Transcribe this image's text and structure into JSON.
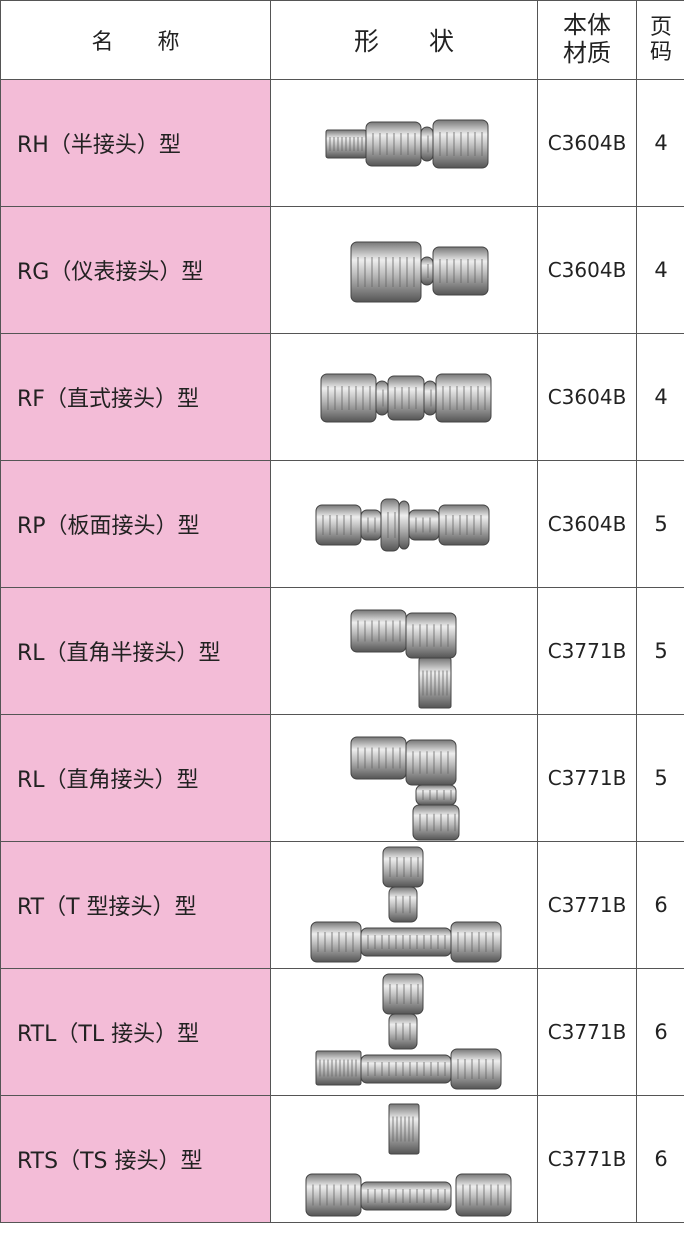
{
  "header": [
    "名　　称",
    "形　　状",
    "本体材质",
    "页码"
  ],
  "rows": [
    {
      "name": "RH（半接头）型",
      "material": "C3604B",
      "page": 4
    },
    {
      "name": "RG（仪表接头）型",
      "material": "C3604B",
      "page": 4
    },
    {
      "name": "RF（直式接头）型",
      "material": "C3604B",
      "page": 4
    },
    {
      "name": "RP（板面接头）型",
      "material": "C3604B",
      "page": 5
    },
    {
      "name": "RL（直角半接头）型",
      "material": "C3771B",
      "page": 5
    },
    {
      "name": "RL（直角接头）型",
      "material": "C3771B",
      "page": 5
    },
    {
      "name": "RT（T 型接头）型",
      "material": "C3771B",
      "page": 6
    },
    {
      "name": "RTL（TL 接头）型",
      "material": "C3771B",
      "page": 6
    },
    {
      "name": "RTS（TS 接头）型",
      "material": "C3771B",
      "page": 6
    }
  ]
}
